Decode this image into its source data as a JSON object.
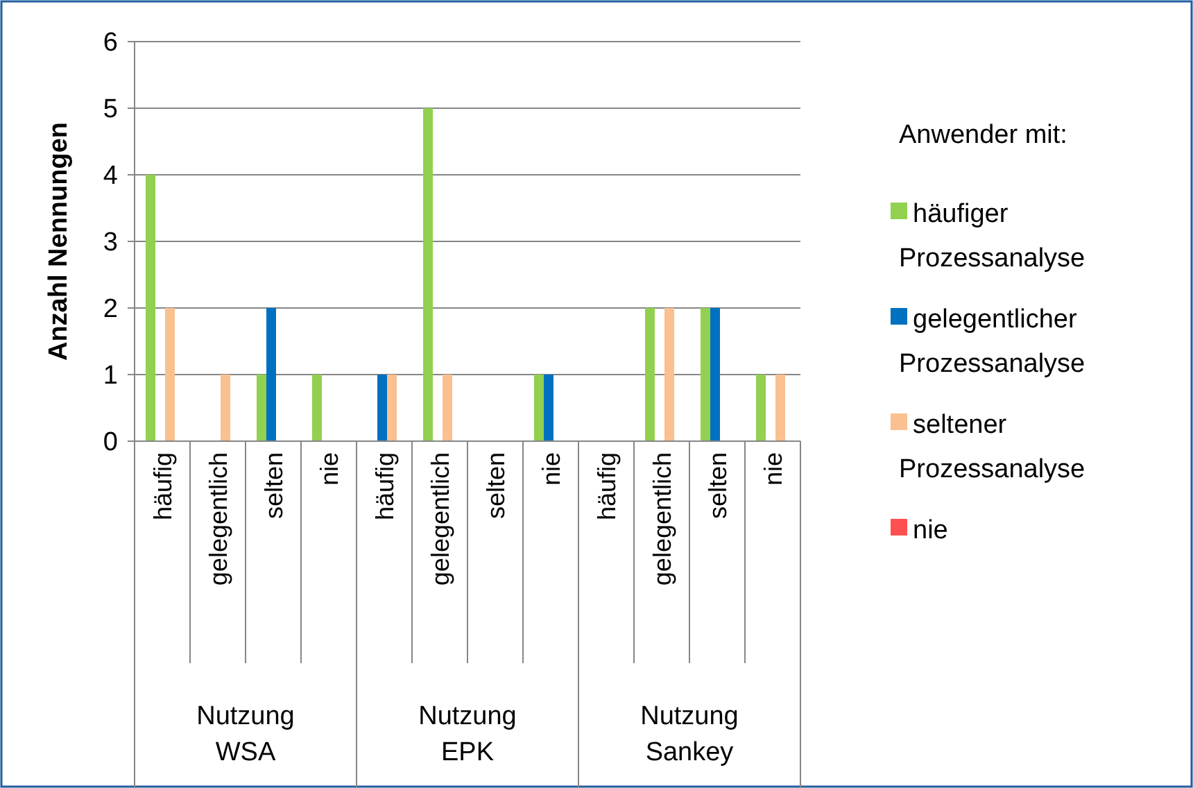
{
  "chart_data": {
    "type": "bar",
    "ylabel": "Anzahl Nennungen",
    "legend_title": "Anwender mit:",
    "legend": "right",
    "categories": [
      "häufig",
      "gelegentlich",
      "selten",
      "nie",
      "häufig",
      "gelegentlich",
      "selten",
      "nie",
      "häufig",
      "gelegentlich",
      "selten",
      "nie"
    ],
    "annotations": [
      "Nutzung WSA",
      "Nutzung EPK",
      "Nutzung Sankey"
    ],
    "series": [
      {
        "name": "häufiger Prozessanalyse",
        "color": "#92d050",
        "values": [
          4,
          0,
          1,
          1,
          0,
          5,
          0,
          1,
          0,
          2,
          2,
          1
        ]
      },
      {
        "name": "gelegentlicher Prozessanalyse",
        "color": "#0070c0",
        "values": [
          0,
          0,
          2,
          0,
          1,
          0,
          0,
          1,
          0,
          0,
          2,
          0
        ]
      },
      {
        "name": "seltener Prozessanalyse",
        "color": "#fac090",
        "values": [
          2,
          1,
          0,
          0,
          1,
          1,
          0,
          0,
          0,
          2,
          0,
          1
        ]
      },
      {
        "name": "nie",
        "color": "#ff5050",
        "values": [
          0,
          0,
          0,
          0,
          0,
          0,
          0,
          0,
          0,
          0,
          0,
          0
        ]
      }
    ],
    "ylim": [
      0,
      6
    ],
    "yticks": [
      0,
      1,
      2,
      3,
      4,
      5,
      6
    ],
    "grid": "y"
  }
}
